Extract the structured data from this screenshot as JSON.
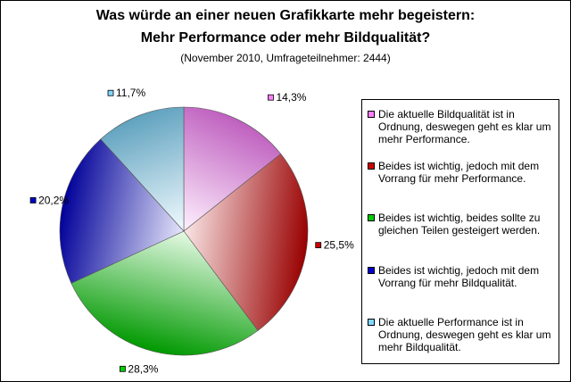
{
  "chart_data": {
    "type": "pie",
    "title": "Was würde an einer neuen Grafikkarte mehr begeistern:",
    "subtitle_line2": "Mehr Performance oder mehr Bildqualität?",
    "note": "(November 2010, Umfrageteilnehmer: 2444)",
    "legend_position": "right",
    "slices": [
      {
        "label": "Die aktuelle Bildqualität ist in Ordnung, deswegen geht es klar um mehr Performance.",
        "value": 14.3,
        "display": "14,3%",
        "color": "#ff80ff"
      },
      {
        "label": "Beides ist wichtig, jedoch mit dem Vorrang für mehr Performance.",
        "value": 25.5,
        "display": "25,5%",
        "color": "#cc0000"
      },
      {
        "label": "Beides ist wichtig, beides sollte zu gleichen Teilen gesteigert werden.",
        "value": 28.3,
        "display": "28,3%",
        "color": "#00cc00"
      },
      {
        "label": "Beides ist wichtig, jedoch mit dem Vorrang für mehr Bildqualität.",
        "value": 20.2,
        "display": "20,2%",
        "color": "#0000cc"
      },
      {
        "label": "Die aktuelle Performance ist in Ordnung, deswegen geht es klar um mehr Bildqualität.",
        "value": 11.7,
        "display": "11,7%",
        "color": "#80d8ff"
      }
    ]
  }
}
